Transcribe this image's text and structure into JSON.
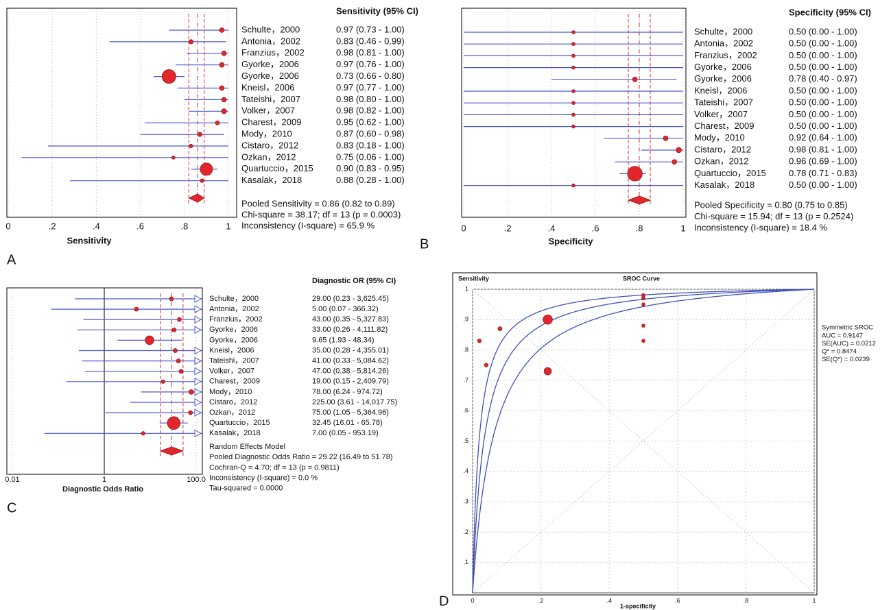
{
  "chart_data": [
    {
      "type": "forest",
      "panel": "A",
      "title": "Sensitivity (95% CI)",
      "xlabel": "Sensitivity",
      "categories": [
        "Schulte，2000",
        "Antonia，2002",
        "Franzius，2002",
        "Gyorke，2006",
        "Gyorke，2006",
        "Kneisl，2006",
        "Tateishi，2007",
        "Volker，2007",
        "Charest，2009",
        "Mody，2010",
        "Cistaro，2012",
        "Ozkan，2012",
        "Quartuccio，2015",
        "Kasalak，2018"
      ],
      "values": [
        0.97,
        0.83,
        0.98,
        0.97,
        0.73,
        0.97,
        0.98,
        0.98,
        0.95,
        0.87,
        0.83,
        0.75,
        0.9,
        0.88
      ],
      "lower": [
        0.73,
        0.46,
        0.81,
        0.76,
        0.66,
        0.77,
        0.8,
        0.82,
        0.62,
        0.6,
        0.18,
        0.06,
        0.83,
        0.28
      ],
      "upper": [
        1.0,
        0.99,
        1.0,
        1.0,
        0.8,
        1.0,
        1.0,
        1.0,
        1.0,
        0.98,
        1.0,
        1.0,
        0.95,
        1.0
      ],
      "weights": [
        4,
        3.5,
        4,
        4,
        35,
        4,
        4,
        4.5,
        3,
        3.5,
        2.5,
        2,
        28,
        2.5
      ],
      "value_labels": [
        "0.97 (0.73 - 1.00)",
        "0.83 (0.46 - 0.99)",
        "0.98 (0.81 - 1.00)",
        "0.97 (0.76 - 1.00)",
        "0.73 (0.66 - 0.80)",
        "0.97 (0.77 - 1.00)",
        "0.98 (0.80 - 1.00)",
        "0.98 (0.82 - 1.00)",
        "0.95 (0.62 - 1.00)",
        "0.87 (0.60 - 0.98)",
        "0.83 (0.18 - 1.00)",
        "0.75 (0.06 - 1.00)",
        "0.90 (0.83 - 0.95)",
        "0.88 (0.28 - 1.00)"
      ],
      "pooled": {
        "value": 0.86,
        "lower": 0.82,
        "upper": 0.89,
        "label": "Pooled Sensitivity = 0.86 (0.82 to 0.89)"
      },
      "notes": [
        "Chi-square = 38.17; df = 13 (p = 0.0003)",
        "Inconsistency (I-square) = 65.9 %"
      ],
      "xlim": [
        0,
        1
      ],
      "xticks": [
        0,
        {
          "value": 0.2,
          "label": ".2"
        },
        {
          "value": 0.4,
          "label": ".4"
        },
        {
          "value": 0.6,
          "label": ".6"
        },
        {
          "value": 0.8,
          "label": ".8"
        },
        1
      ],
      "grid": true,
      "color": "#e3262b",
      "ci_color": "#4a57d4"
    },
    {
      "type": "forest",
      "panel": "B",
      "title": "Specificity (95% CI)",
      "xlabel": "Specificity",
      "categories": [
        "Schulte，2000",
        "Antonia，2002",
        "Franzius，2002",
        "Gyorke，2006",
        "Gyorke，2006",
        "Kneisl，2006",
        "Tateishi，2007",
        "Volker，2007",
        "Charest，2009",
        "Mody，2010",
        "Cistaro，2012",
        "Ozkan，2012",
        "Quartuccio，2015",
        "Kasalak，2018"
      ],
      "values": [
        0.5,
        0.5,
        0.5,
        0.5,
        0.78,
        0.5,
        0.5,
        0.5,
        0.5,
        0.92,
        0.98,
        0.96,
        0.78,
        0.5
      ],
      "lower": [
        0.0,
        0.0,
        0.0,
        0.0,
        0.4,
        0.0,
        0.0,
        0.0,
        0.0,
        0.64,
        0.81,
        0.69,
        0.71,
        0.0
      ],
      "upper": [
        1.0,
        1.0,
        1.0,
        1.0,
        0.97,
        1.0,
        1.0,
        1.0,
        1.0,
        1.0,
        1.0,
        1.0,
        0.83,
        1.0
      ],
      "weights": [
        2,
        2,
        2,
        2,
        4,
        2,
        2,
        2,
        2,
        4,
        5,
        4,
        40,
        2
      ],
      "value_labels": [
        "0.50 (0.00 - 1.00)",
        "0.50 (0.00 - 1.00)",
        "0.50 (0.00 - 1.00)",
        "0.50 (0.00 - 1.00)",
        "0.78 (0.40 - 0.97)",
        "0.50 (0.00 - 1.00)",
        "0.50 (0.00 - 1.00)",
        "0.50 (0.00 - 1.00)",
        "0.50 (0.00 - 1.00)",
        "0.92 (0.64 - 1.00)",
        "0.98 (0.81 - 1.00)",
        "0.96 (0.69 - 1.00)",
        "0.78 (0.71 - 0.83)",
        "0.50 (0.00 - 1.00)"
      ],
      "pooled": {
        "value": 0.8,
        "lower": 0.75,
        "upper": 0.85,
        "label": "Pooled Specificity = 0.80 (0.75 to 0.85)"
      },
      "notes": [
        "Chi-square = 15.94; df = 13 (p = 0.2524)",
        "Inconsistency (I-square) = 18.4 %"
      ],
      "xlim": [
        0,
        1
      ],
      "xticks": [
        0,
        {
          "value": 0.2,
          "label": ".2"
        },
        {
          "value": 0.4,
          "label": ".4"
        },
        {
          "value": 0.6,
          "label": ".6"
        },
        {
          "value": 0.8,
          "label": ".8"
        },
        1
      ],
      "grid": true,
      "color": "#e3262b",
      "ci_color": "#4a57d4"
    },
    {
      "type": "forest",
      "panel": "C",
      "title": "Diagnostic OR (95% CI)",
      "xlabel": "Diagnostic Odds Ratio",
      "categories": [
        "Schulte，2000",
        "Antonia，2002",
        "Franzius，2002",
        "Gyorke，2006",
        "Gyorke，2006",
        "Kneisl，2006",
        "Tateishi，2007",
        "Volker，2007",
        "Charest，2009",
        "Mody，2010",
        "Cistaro，2012",
        "Ozkan，2012",
        "Quartuccio，2015",
        "Kasalak，2018"
      ],
      "values": [
        29.0,
        5.0,
        43.0,
        33.0,
        9.65,
        35.0,
        41.0,
        47.0,
        19.0,
        78.0,
        225.0,
        75.0,
        32.45,
        7.0
      ],
      "lower": [
        0.23,
        0.07,
        0.35,
        0.26,
        1.93,
        0.28,
        0.33,
        0.38,
        0.15,
        6.24,
        3.61,
        1.05,
        16.01,
        0.05
      ],
      "upper": [
        3625.45,
        366.32,
        5327.83,
        4111.82,
        48.34,
        4355.01,
        5084.62,
        5814.26,
        2409.79,
        974.72,
        14017.75,
        5364.96,
        65.78,
        953.19
      ],
      "weights": [
        3,
        3,
        3,
        3,
        14,
        3,
        3,
        3,
        2.5,
        4,
        3,
        3,
        30,
        2.5
      ],
      "value_labels": [
        "29.00 (0.23 - 3,625.45)",
        "5.00 (0.07 - 366.32)",
        "43.00 (0.35 - 5,327.83)",
        "33.00 (0.26 - 4,111.82)",
        "9.65 (1.93 - 48.34)",
        "35.00 (0.28 - 4,355.01)",
        "41.00 (0.33 - 5,084.62)",
        "47.00 (0.38 - 5,814.26)",
        "19.00 (0.15 - 2,409.79)",
        "78.00 (6.24 - 974.72)",
        "225.00 (3.61 - 14,017.75)",
        "75.00 (1.05 - 5,364.96)",
        "32.45 (16.01 - 65.78)",
        "7.00 (0.05 - 953.19)"
      ],
      "model": "Random Effects Model",
      "pooled": {
        "value": 29.22,
        "lower": 16.49,
        "upper": 51.78,
        "label": "Pooled Diagnostic Odds Ratio = 29.22 (16.49 to 51.78)"
      },
      "notes": [
        "Cochran-Q = 4.70; df = 13 (p = 0.9811)",
        "Inconsistency (I-square) = 0.0 %",
        "Tau-squared = 0.0000"
      ],
      "log_scale": true,
      "ref_line": 1,
      "xlim": [
        0.0076,
        136
      ],
      "xticks": [
        {
          "value": 0.01,
          "label": "0.01"
        },
        1,
        {
          "value": 100,
          "label": "100.0"
        }
      ],
      "grid": true,
      "color": "#e3262b",
      "ci_color": "#4a57d4"
    },
    {
      "type": "sroc",
      "panel": "D",
      "title": "SROC Curve",
      "ylabel": "Sensitivity",
      "xlabel": "1-specificity",
      "x": [
        0.5,
        0.5,
        0.5,
        0.5,
        0.22,
        0.5,
        0.5,
        0.5,
        0.5,
        0.08,
        0.02,
        0.04,
        0.22,
        0.5
      ],
      "values": [
        0.97,
        0.83,
        0.98,
        0.97,
        0.73,
        0.97,
        0.98,
        0.98,
        0.95,
        0.87,
        0.83,
        0.75,
        0.9,
        0.88
      ],
      "weights": [
        2,
        2,
        2,
        2,
        10,
        2,
        2,
        2,
        2,
        3,
        2.5,
        2.5,
        16,
        2
      ],
      "legend_title": "Symmetric SROC",
      "legend_lines": [
        "AUC = 0.9147",
        "SE(AUC) = 0.0212",
        "Q* = 0.8474",
        "SE(Q*) = 0.0239"
      ],
      "xlim": [
        0,
        1
      ],
      "ylim": [
        0,
        1
      ],
      "xticks": [
        0,
        {
          "value": 0.2,
          "label": ".2"
        },
        {
          "value": 0.4,
          "label": ".4"
        },
        {
          "value": 0.6,
          "label": ".6"
        },
        {
          "value": 0.8,
          "label": ".8"
        },
        1
      ],
      "yticks": [
        {
          "value": 0.1,
          "label": ".1"
        },
        {
          "value": 0.2,
          "label": ".2"
        },
        {
          "value": 0.3,
          "label": ".3"
        },
        {
          "value": 0.4,
          "label": ".4"
        },
        {
          "value": 0.5,
          "label": ".5"
        },
        {
          "value": 0.6,
          "label": ".6"
        },
        {
          "value": 0.7,
          "label": ".7"
        },
        {
          "value": 0.8,
          "label": ".8"
        },
        {
          "value": 0.9,
          "label": ".9"
        },
        1
      ],
      "grid": true,
      "color": "#e3262b",
      "curve_color": "#3f4fb8"
    }
  ]
}
